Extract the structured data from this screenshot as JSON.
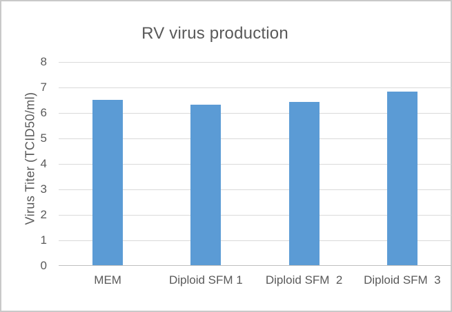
{
  "window": {
    "background_color": "#ffffff",
    "border_color": "#c9c9c9"
  },
  "chart_data": {
    "type": "bar",
    "title": "RV virus production",
    "categories": [
      "MEM",
      "Diploid SFM 1",
      "Diploid SFM  2",
      "Diploid SFM  3"
    ],
    "values": [
      6.5,
      6.3,
      6.4,
      6.8
    ],
    "xlabel": "",
    "ylabel": "Virus Titer (TCID50/ml)",
    "ylim": [
      0,
      8
    ],
    "yticks": [
      0,
      1,
      2,
      3,
      4,
      5,
      6,
      7,
      8
    ],
    "grid": true,
    "legend_position": "none",
    "bar_color": "#5B9BD5",
    "text_color": "#595959",
    "gridline_color": "#D9D9D9",
    "axis_line_color": "#BFBFBF"
  }
}
